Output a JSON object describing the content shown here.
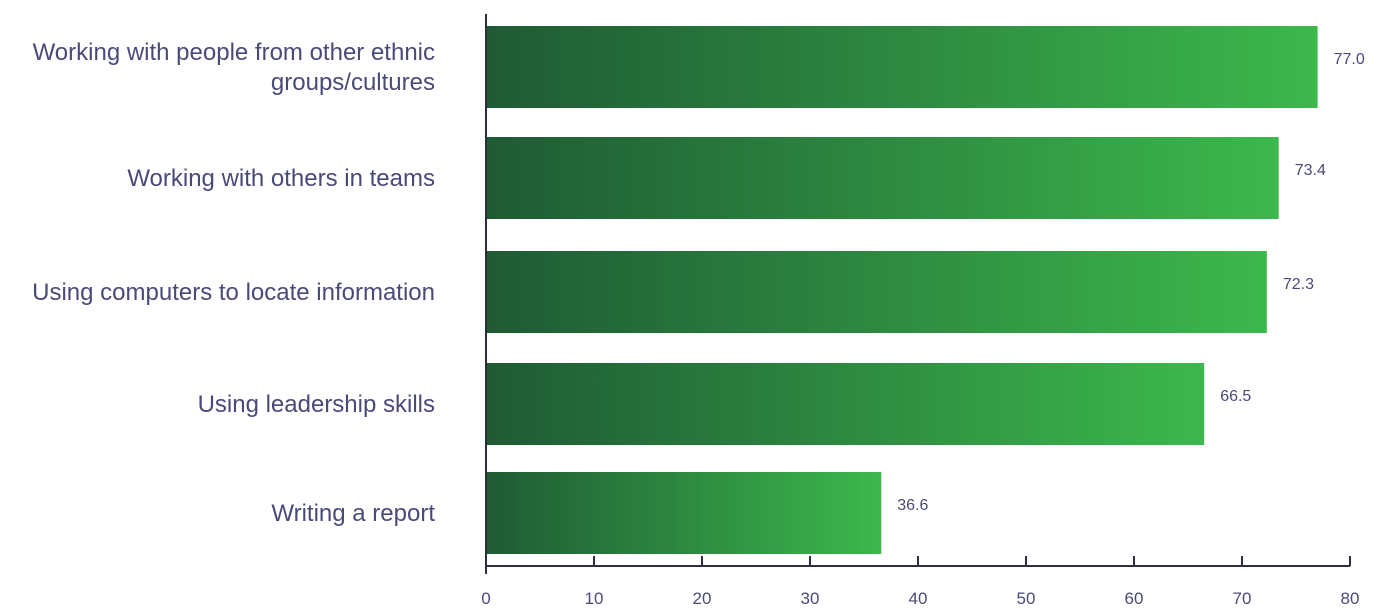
{
  "chart_data": {
    "type": "bar",
    "orientation": "horizontal",
    "categories": [
      [
        "Working with people from other ethnic",
        "groups/cultures"
      ],
      [
        "Working with others in teams"
      ],
      [
        "Using computers to locate information"
      ],
      [
        "Using leadership skills"
      ],
      [
        "Writing a report"
      ]
    ],
    "values": [
      77.0,
      73.4,
      72.3,
      66.5,
      36.6
    ],
    "value_labels": [
      "77.0",
      "73.4",
      "72.3",
      "66.5",
      "36.6"
    ],
    "xlim": [
      0,
      80
    ],
    "xticks": [
      0,
      10,
      20,
      30,
      40,
      50,
      60,
      70,
      80
    ],
    "grid": false,
    "colors": {
      "bar_dark": "#1f5a35",
      "bar_light": "#3cb84c",
      "text": "#4a4a78",
      "axis": "#2e2e3e"
    }
  }
}
